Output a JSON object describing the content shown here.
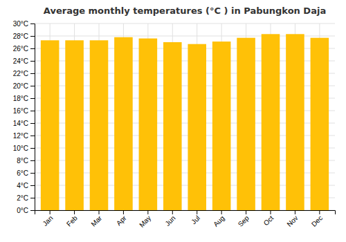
{
  "chart_data": {
    "type": "bar",
    "title": "Average monthly temperatures (°C ) in Pabungkon Daja",
    "categories": [
      "Jan",
      "Feb",
      "Mar",
      "Apr",
      "May",
      "Jun",
      "Jul",
      "Aug",
      "Sep",
      "Oct",
      "Nov",
      "Dec"
    ],
    "values": [
      27.3,
      27.3,
      27.3,
      27.8,
      27.6,
      27.0,
      26.7,
      27.1,
      27.7,
      28.3,
      28.3,
      27.7
    ],
    "color": "#FFC107",
    "ylim": [
      0,
      30
    ],
    "yticks": [
      {
        "value": 0,
        "label": "0°C"
      },
      {
        "value": 2,
        "label": "2°C"
      },
      {
        "value": 4,
        "label": "4°C"
      },
      {
        "value": 6,
        "label": "6°C"
      },
      {
        "value": 8,
        "label": "8°C"
      },
      {
        "value": 10,
        "label": "10°C"
      },
      {
        "value": 12,
        "label": "12°C"
      },
      {
        "value": 14,
        "label": "14°C"
      },
      {
        "value": 16,
        "label": "16°C"
      },
      {
        "value": 18,
        "label": "18°C"
      },
      {
        "value": 20,
        "label": "20°C"
      },
      {
        "value": 22,
        "label": "22°C"
      },
      {
        "value": 24,
        "label": "24°C"
      },
      {
        "value": 26,
        "label": "26°C"
      },
      {
        "value": 28,
        "label": "28°C"
      },
      {
        "value": 30,
        "label": "30°C"
      }
    ],
    "grid": true
  }
}
